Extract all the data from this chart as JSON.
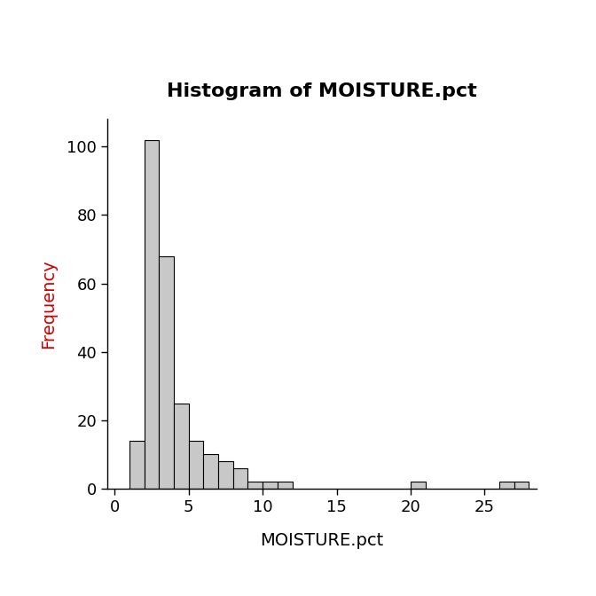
{
  "title": "Histogram of MOISTURE.pct",
  "xlabel": "MOISTURE.pct",
  "ylabel": "Frequency",
  "bar_color": "#c8c8c8",
  "bar_edge_color": "#000000",
  "background_color": "#ffffff",
  "title_fontsize": 16,
  "label_fontsize": 14,
  "tick_fontsize": 13,
  "ylabel_color": "#cc0000",
  "bin_edges": [
    0,
    1,
    2,
    3,
    4,
    5,
    6,
    7,
    8,
    9,
    10,
    11,
    12,
    13,
    14,
    15,
    16,
    17,
    18,
    19,
    20,
    21,
    22,
    23,
    24,
    25,
    26,
    27,
    28
  ],
  "frequencies": [
    0,
    14,
    102,
    68,
    25,
    14,
    10,
    8,
    6,
    2,
    2,
    2,
    0,
    0,
    0,
    0,
    0,
    0,
    0,
    0,
    2,
    0,
    0,
    0,
    0,
    0,
    2,
    2
  ],
  "xlim": [
    -0.5,
    28.5
  ],
  "ylim": [
    0,
    108
  ],
  "yticks": [
    0,
    20,
    40,
    60,
    80,
    100
  ],
  "xticks": [
    0,
    5,
    10,
    15,
    20,
    25
  ]
}
